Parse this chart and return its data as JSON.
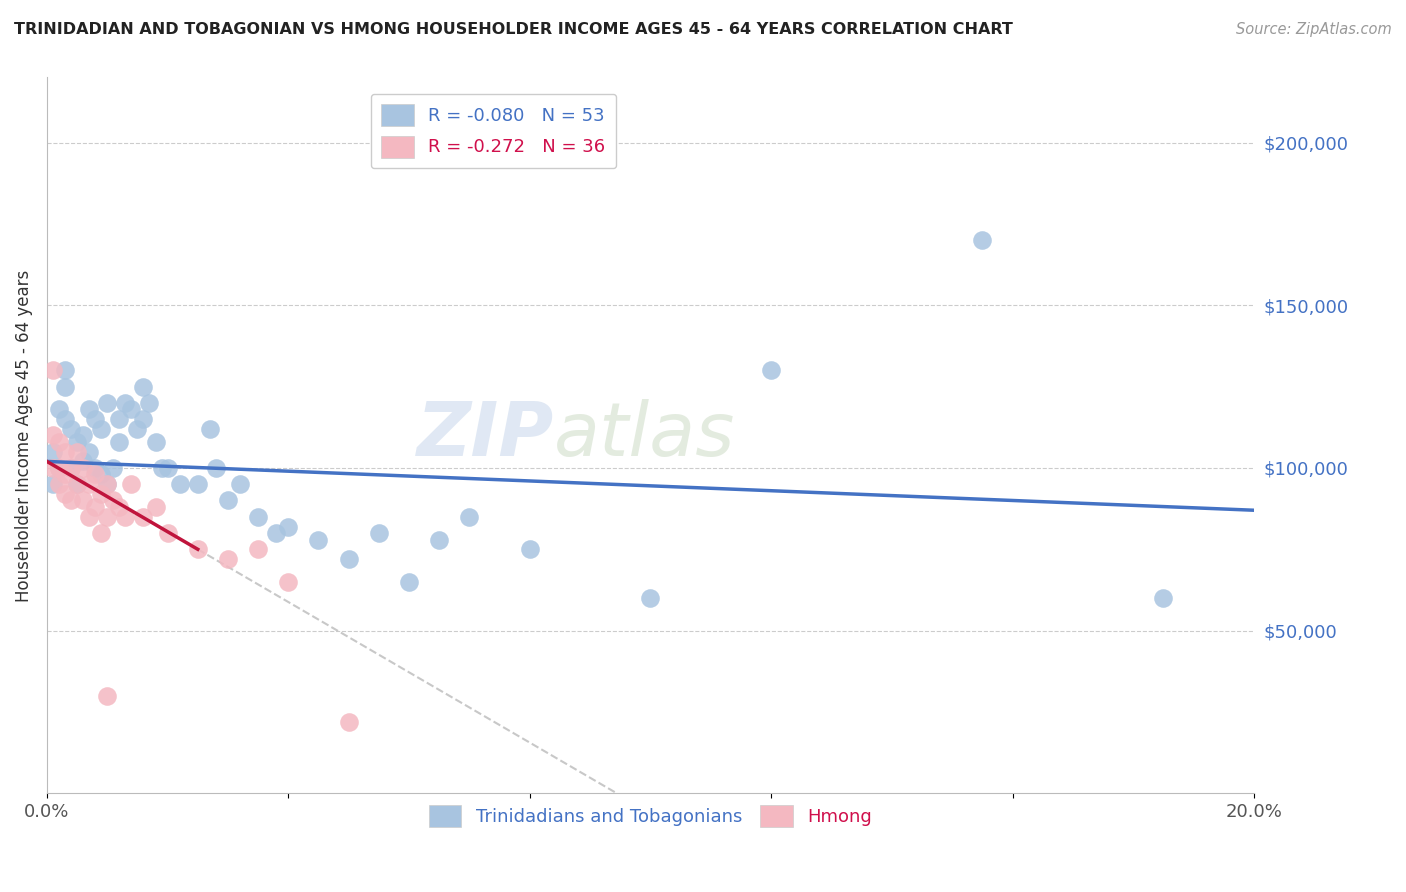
{
  "title": "TRINIDADIAN AND TOBAGONIAN VS HMONG HOUSEHOLDER INCOME AGES 45 - 64 YEARS CORRELATION CHART",
  "source": "Source: ZipAtlas.com",
  "ylabel": "Householder Income Ages 45 - 64 years",
  "watermark": "ZIPatlas",
  "xlim": [
    0.0,
    0.2
  ],
  "ylim": [
    0,
    220000
  ],
  "legend_label1": "R = -0.080   N = 53",
  "legend_label2": "R = -0.272   N = 36",
  "legend_group1": "Trinidadians and Tobagonians",
  "legend_group2": "Hmong",
  "blue_color": "#a8c4e0",
  "blue_line_color": "#4472c4",
  "pink_color": "#f4b8c1",
  "pink_line_color": "#c0143c",
  "dashed_line_color": "#c8c8c8",
  "blue_scatter_x": [
    0.001,
    0.001,
    0.002,
    0.002,
    0.003,
    0.003,
    0.003,
    0.004,
    0.004,
    0.005,
    0.005,
    0.006,
    0.006,
    0.007,
    0.007,
    0.008,
    0.008,
    0.009,
    0.009,
    0.01,
    0.01,
    0.011,
    0.012,
    0.012,
    0.013,
    0.014,
    0.015,
    0.016,
    0.016,
    0.017,
    0.018,
    0.019,
    0.02,
    0.022,
    0.025,
    0.027,
    0.028,
    0.03,
    0.032,
    0.035,
    0.038,
    0.04,
    0.045,
    0.05,
    0.055,
    0.06,
    0.065,
    0.07,
    0.08,
    0.1,
    0.12,
    0.155,
    0.185
  ],
  "blue_scatter_y": [
    105000,
    95000,
    118000,
    100000,
    130000,
    125000,
    115000,
    112000,
    100000,
    108000,
    95000,
    110000,
    102000,
    118000,
    105000,
    115000,
    100000,
    112000,
    98000,
    120000,
    95000,
    100000,
    115000,
    108000,
    120000,
    118000,
    112000,
    125000,
    115000,
    120000,
    108000,
    100000,
    100000,
    95000,
    95000,
    112000,
    100000,
    90000,
    95000,
    85000,
    80000,
    82000,
    78000,
    72000,
    80000,
    65000,
    78000,
    85000,
    75000,
    60000,
    130000,
    170000,
    60000
  ],
  "pink_scatter_x": [
    0.001,
    0.001,
    0.001,
    0.002,
    0.002,
    0.002,
    0.003,
    0.003,
    0.003,
    0.004,
    0.004,
    0.005,
    0.005,
    0.006,
    0.006,
    0.007,
    0.007,
    0.008,
    0.008,
    0.009,
    0.009,
    0.01,
    0.01,
    0.011,
    0.012,
    0.013,
    0.014,
    0.016,
    0.018,
    0.02,
    0.025,
    0.03,
    0.035,
    0.04,
    0.05,
    0.01
  ],
  "pink_scatter_y": [
    130000,
    110000,
    100000,
    108000,
    100000,
    95000,
    105000,
    98000,
    92000,
    100000,
    90000,
    105000,
    95000,
    100000,
    90000,
    95000,
    85000,
    98000,
    88000,
    92000,
    80000,
    95000,
    85000,
    90000,
    88000,
    85000,
    95000,
    85000,
    88000,
    80000,
    75000,
    72000,
    75000,
    65000,
    22000,
    30000
  ]
}
